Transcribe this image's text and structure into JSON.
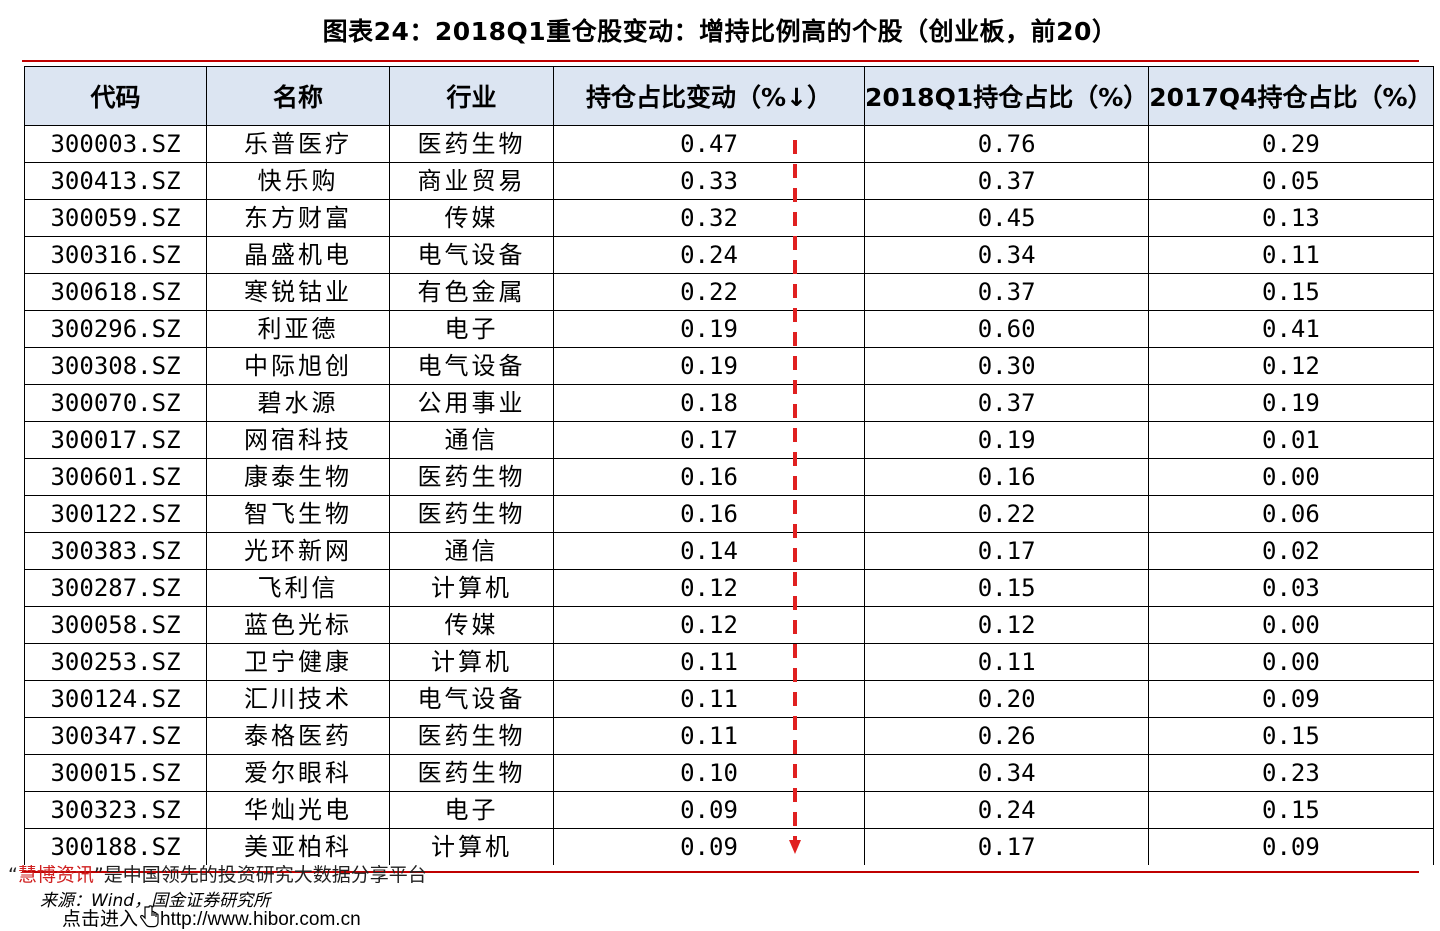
{
  "title": "图表24：2018Q1重仓股变动：增持比例高的个股（创业板，前20）",
  "table": {
    "headers": [
      "代码",
      "名称",
      "行业",
      "持仓占比变动（%↓）",
      "2018Q1持仓占比（%）",
      "2017Q4持仓占比（%）"
    ],
    "rows": [
      [
        "300003.SZ",
        "乐普医疗",
        "医药生物",
        "0.47",
        "0.76",
        "0.29"
      ],
      [
        "300413.SZ",
        "快乐购",
        "商业贸易",
        "0.33",
        "0.37",
        "0.05"
      ],
      [
        "300059.SZ",
        "东方财富",
        "传媒",
        "0.32",
        "0.45",
        "0.13"
      ],
      [
        "300316.SZ",
        "晶盛机电",
        "电气设备",
        "0.24",
        "0.34",
        "0.11"
      ],
      [
        "300618.SZ",
        "寒锐钴业",
        "有色金属",
        "0.22",
        "0.37",
        "0.15"
      ],
      [
        "300296.SZ",
        "利亚德",
        "电子",
        "0.19",
        "0.60",
        "0.41"
      ],
      [
        "300308.SZ",
        "中际旭创",
        "电气设备",
        "0.19",
        "0.30",
        "0.12"
      ],
      [
        "300070.SZ",
        "碧水源",
        "公用事业",
        "0.18",
        "0.37",
        "0.19"
      ],
      [
        "300017.SZ",
        "网宿科技",
        "通信",
        "0.17",
        "0.19",
        "0.01"
      ],
      [
        "300601.SZ",
        "康泰生物",
        "医药生物",
        "0.16",
        "0.16",
        "0.00"
      ],
      [
        "300122.SZ",
        "智飞生物",
        "医药生物",
        "0.16",
        "0.22",
        "0.06"
      ],
      [
        "300383.SZ",
        "光环新网",
        "通信",
        "0.14",
        "0.17",
        "0.02"
      ],
      [
        "300287.SZ",
        "飞利信",
        "计算机",
        "0.12",
        "0.15",
        "0.03"
      ],
      [
        "300058.SZ",
        "蓝色光标",
        "传媒",
        "0.12",
        "0.12",
        "0.00"
      ],
      [
        "300253.SZ",
        "卫宁健康",
        "计算机",
        "0.11",
        "0.11",
        "0.00"
      ],
      [
        "300124.SZ",
        "汇川技术",
        "电气设备",
        "0.11",
        "0.20",
        "0.09"
      ],
      [
        "300347.SZ",
        "泰格医药",
        "医药生物",
        "0.11",
        "0.26",
        "0.15"
      ],
      [
        "300015.SZ",
        "爱尔眼科",
        "医药生物",
        "0.10",
        "0.34",
        "0.23"
      ],
      [
        "300323.SZ",
        "华灿光电",
        "电子",
        "0.09",
        "0.24",
        "0.15"
      ],
      [
        "300188.SZ",
        "美亚柏科",
        "计算机",
        "0.09",
        "0.17",
        "0.09"
      ]
    ]
  },
  "watermark": {
    "open_quote": "“",
    "brand": "慧博资讯",
    "rest": "”是中国领先的投资研究大数据分享平台"
  },
  "source": "来源：Wind，国金证券研究所",
  "link": {
    "prefix": "点击进入",
    "url": "http://www.hibor.com.cn",
    "cursor_icon": "hand-pointer-icon"
  },
  "colors": {
    "accent_red": "#c00000",
    "header_fill": "#dce5f2",
    "arrow_red": "#e02020"
  }
}
